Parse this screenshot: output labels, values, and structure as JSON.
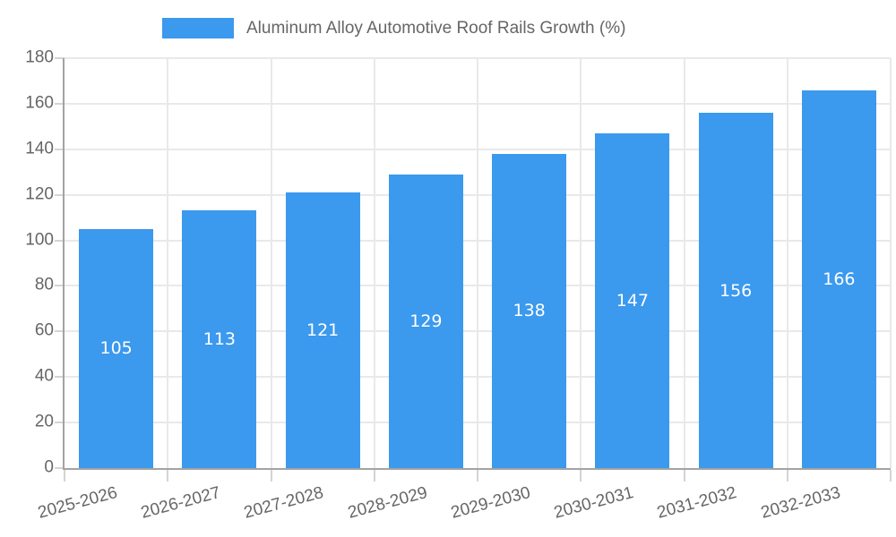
{
  "legend": {
    "series_label": "Aluminum Alloy Automotive Roof Rails Growth (%)"
  },
  "chart_data": {
    "type": "bar",
    "title": "Aluminum Alloy Automotive Roof Rails Growth (%)",
    "categories": [
      "2025-2026",
      "2026-2027",
      "2027-2028",
      "2028-2029",
      "2029-2030",
      "2030-2031",
      "2031-2032",
      "2032-2033"
    ],
    "values": [
      105,
      113,
      121,
      129,
      138,
      147,
      156,
      166
    ],
    "value_labels_shown": true,
    "xlabel": "",
    "ylabel": "",
    "ylim": [
      0,
      180
    ],
    "ytick_step": 20,
    "ytick_labels": [
      "0",
      "20",
      "40",
      "60",
      "80",
      "100",
      "120",
      "140",
      "160",
      "180"
    ],
    "grid": true,
    "legend_position": "top",
    "x_label_rotation_deg": -15,
    "colors": {
      "bar": "#3B99EE",
      "value_label": "#ffffff",
      "axis_text": "#666666",
      "gridline": "#E9E9E9",
      "tick": "#D4D4D4",
      "axis_line": "#A3A3A3",
      "background": "#ffffff"
    }
  }
}
